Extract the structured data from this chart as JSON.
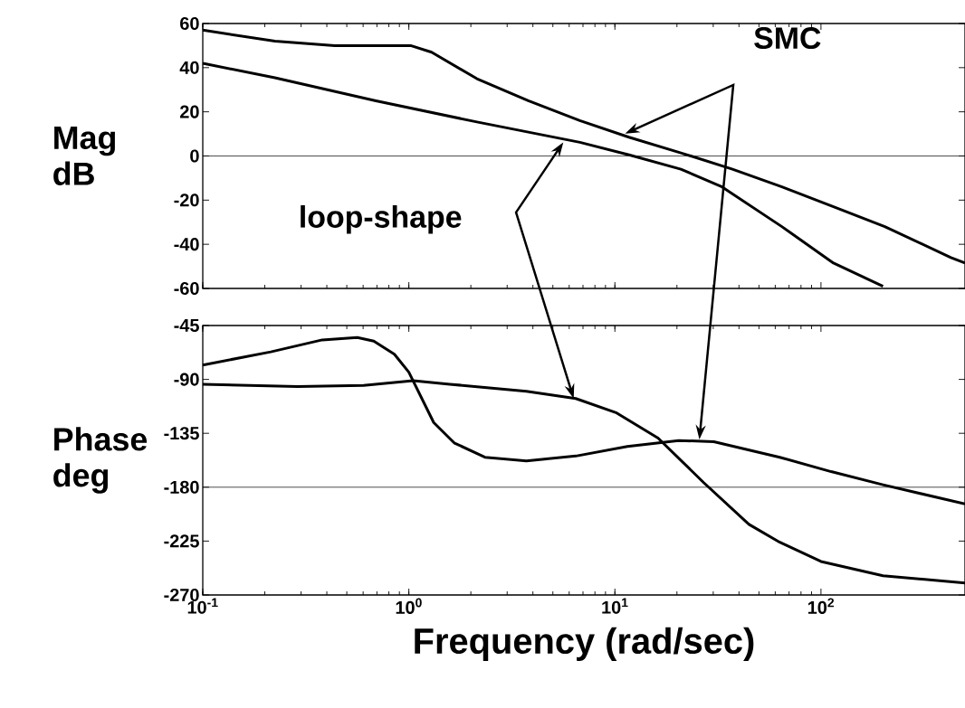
{
  "chart_data": [
    {
      "type": "line",
      "ylabel": "Mag dB",
      "log": "x",
      "xlim": [
        0.1,
        500
      ],
      "ylim": [
        -60,
        60
      ],
      "xticks": [
        {
          "value": 0.1,
          "label": null
        },
        {
          "value": 1,
          "label": null
        },
        {
          "value": 10,
          "label": null
        },
        {
          "value": 100,
          "label": null
        }
      ],
      "yticks": [
        -60,
        -40,
        -20,
        0,
        20,
        40,
        60
      ],
      "tick_labels": "y",
      "annotations": [
        "SMC",
        "loop-shape"
      ],
      "ref_lines": [
        {
          "axis": "y",
          "value": 0
        }
      ],
      "series": [
        {
          "color": "#000000",
          "x": [
            0.1,
            0.224,
            0.437,
            0.692,
            1.02,
            1.29,
            2.14,
            3.8,
            6.76,
            11.7,
            20.9,
            37.2,
            64.6,
            115,
            204,
            427,
            500
          ],
          "values": [
            57,
            52,
            50,
            50,
            50,
            47,
            35,
            25,
            16,
            8.5,
            1.4,
            -6,
            -14,
            -23,
            -32,
            -46,
            -48.5
          ]
        },
        {
          "color": "#000000",
          "x": [
            0.1,
            0.224,
            0.692,
            2.14,
            6.76,
            11.7,
            20.9,
            33.1,
            64.6,
            115,
            200
          ],
          "values": [
            42,
            35.4,
            25,
            15.4,
            6.2,
            0.5,
            -6,
            -14,
            -32,
            -48.5,
            -59
          ]
        }
      ]
    },
    {
      "type": "line",
      "ylabel": "Phase deg",
      "xlabel": "Frequency (rad/sec)",
      "log": "x",
      "xlim": [
        0.1,
        500
      ],
      "ylim": [
        -270,
        -45
      ],
      "xticks": [
        {
          "value": 0.1,
          "label": "10$^{-1}$"
        },
        {
          "value": 1,
          "label": "10$^{0}$"
        },
        {
          "value": 10,
          "label": "10$^{1}$"
        },
        {
          "value": 100,
          "label": "10$^{2}$"
        }
      ],
      "yticks": [
        -270,
        -225,
        -180,
        -135,
        -90,
        -45
      ],
      "ref_lines": [
        {
          "axis": "y",
          "value": -180
        }
      ],
      "series": [
        {
          "color": "#000000",
          "x": [
            0.1,
            0.214,
            0.38,
            0.562,
            0.676,
            0.851,
            1,
            1.32,
            1.66,
            2.34,
            3.72,
            6.46,
            11.5,
            20.4,
            30.2,
            63.1,
            112,
            200,
            500
          ],
          "values": [
            -78,
            -67,
            -57,
            -55,
            -58,
            -69,
            -84,
            -126,
            -143,
            -155,
            -158,
            -154,
            -146,
            -141,
            -142,
            -155,
            -167,
            -178,
            -194
          ]
        },
        {
          "color": "#000000",
          "x": [
            0.1,
            0.288,
            0.603,
            1.05,
            1.58,
            3.72,
            6.46,
            10.2,
            16.2,
            26.9,
            44.7,
            63.1,
            100,
            200,
            500
          ],
          "values": [
            -94,
            -96,
            -95,
            -91,
            -94,
            -100,
            -106,
            -118,
            -139,
            -176,
            -211,
            -226,
            -242,
            -254,
            -260
          ]
        }
      ]
    }
  ]
}
